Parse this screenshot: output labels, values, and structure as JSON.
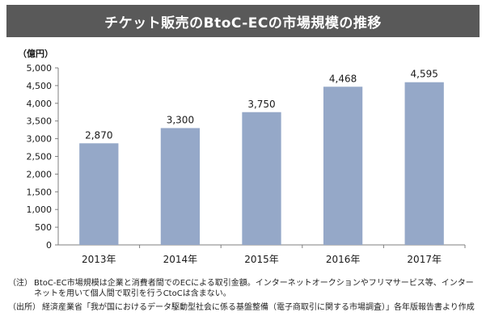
{
  "title": "チケット販売のBtoC-ECの市場規模の推移",
  "chart_data": {
    "type": "bar",
    "unit_label": "（億円）",
    "categories": [
      "2013年",
      "2014年",
      "2015年",
      "2016年",
      "2017年"
    ],
    "values": [
      2870,
      3300,
      3750,
      4468,
      4595
    ],
    "value_labels": [
      "2,870",
      "3,300",
      "3,750",
      "4,468",
      "4,595"
    ],
    "ylim": [
      0,
      5000
    ],
    "yticks": [
      0,
      500,
      1000,
      1500,
      2000,
      2500,
      3000,
      3500,
      4000,
      4500,
      5000
    ],
    "ytick_labels": [
      "0",
      "500",
      "1,000",
      "1,500",
      "2,000",
      "2,500",
      "3,000",
      "3,500",
      "4,000",
      "4,500",
      "5,000"
    ],
    "grid": false,
    "legend": "none",
    "bar_color": "#95a8c8"
  },
  "notes": {
    "note_tag": "（注）",
    "note_text": "BtoC-EC市場規模は企業と消費者間でのECによる取引金額。インターネットオークションやフリマサービス等、インターネットを用いて個人間で取引を行うCtoCは含まない。",
    "source_tag": "（出所）",
    "source_text": "経済産業省「我が国におけるデータ駆動型社会に係る基盤整備（電子商取引に関する市場調査）」各年版報告書より作成"
  }
}
